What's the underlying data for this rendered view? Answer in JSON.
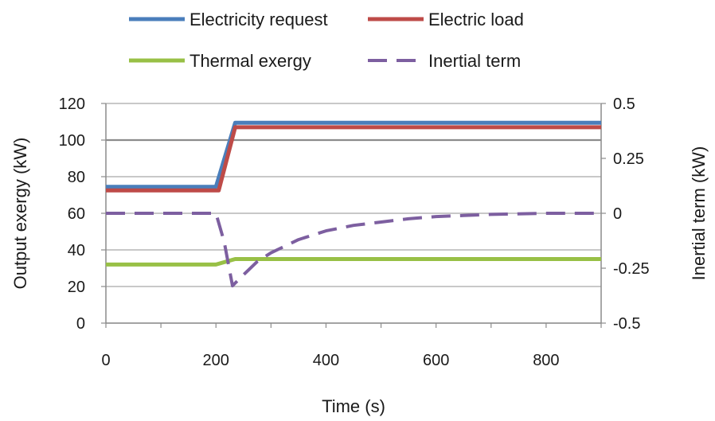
{
  "chart_data": {
    "type": "line",
    "xlabel": "Time (s)",
    "ylabel": "Output exergy (kW)",
    "y2label": "Inertial term (kW)",
    "xlim": [
      0,
      900
    ],
    "ylim": [
      0,
      120
    ],
    "y2lim": [
      -0.5,
      0.5
    ],
    "x_ticks": [
      0,
      200,
      400,
      600,
      800
    ],
    "y_ticks": [
      0,
      20,
      40,
      60,
      80,
      100,
      120
    ],
    "y2_ticks": [
      {
        "value": -0.5,
        "label": "-0.5"
      },
      {
        "value": -0.25,
        "label": "-0.25"
      },
      {
        "value": 0,
        "label": "0"
      },
      {
        "value": 0.25,
        "label": "0.25"
      },
      {
        "value": 0.5,
        "label": "0.5"
      }
    ],
    "grid": true,
    "legend_position": "top",
    "series": [
      {
        "name": "Electricity request",
        "axis": "left",
        "color": "#4a7ebb",
        "dashed": false,
        "points": [
          [
            0,
            74.5
          ],
          [
            200,
            74.5
          ],
          [
            235,
            109.5
          ],
          [
            900,
            109.5
          ]
        ]
      },
      {
        "name": "Electric load",
        "axis": "left",
        "color": "#be4b48",
        "dashed": false,
        "points": [
          [
            0,
            72.5
          ],
          [
            205,
            72.5
          ],
          [
            235,
            107
          ],
          [
            900,
            107
          ]
        ]
      },
      {
        "name": "Thermal exergy",
        "axis": "left",
        "color": "#98c046",
        "dashed": false,
        "points": [
          [
            0,
            32
          ],
          [
            200,
            32
          ],
          [
            235,
            35
          ],
          [
            900,
            35
          ]
        ]
      },
      {
        "name": "Inertial term",
        "axis": "right",
        "color": "#7d5fa0",
        "dashed": true,
        "points": [
          [
            0,
            0.0
          ],
          [
            200,
            0.0
          ],
          [
            215,
            -0.13
          ],
          [
            230,
            -0.33
          ],
          [
            250,
            -0.28
          ],
          [
            275,
            -0.22
          ],
          [
            300,
            -0.18
          ],
          [
            350,
            -0.12
          ],
          [
            400,
            -0.08
          ],
          [
            450,
            -0.055
          ],
          [
            500,
            -0.04
          ],
          [
            550,
            -0.025
          ],
          [
            600,
            -0.015
          ],
          [
            650,
            -0.01
          ],
          [
            700,
            -0.005
          ],
          [
            800,
            0.0
          ],
          [
            900,
            0.0
          ]
        ]
      }
    ]
  }
}
